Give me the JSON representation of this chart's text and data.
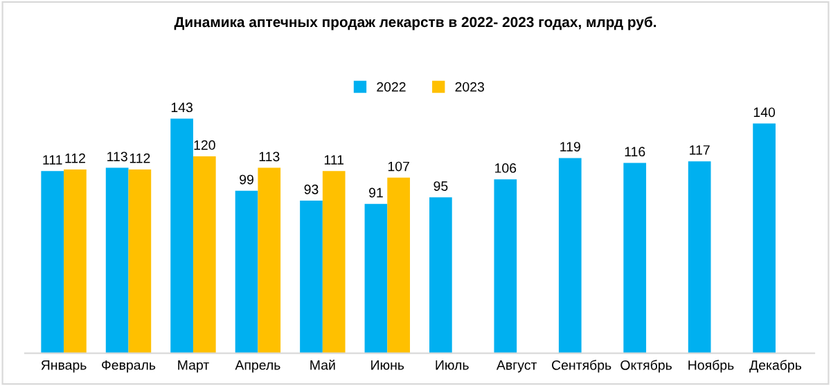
{
  "chart_data": {
    "type": "bar",
    "title": "Динамика аптечных продаж лекарств в 2022- 2023 годах, млрд руб.",
    "categories": [
      "Январь",
      "Февраль",
      "Март",
      "Апрель",
      "Май",
      "Июнь",
      "Июль",
      "Август",
      "Сентябрь",
      "Октябрь",
      "Ноябрь",
      "Декабрь"
    ],
    "series": [
      {
        "name": "2022",
        "color": "#00b0f0",
        "values": [
          111,
          113,
          143,
          99,
          93,
          91,
          95,
          106,
          119,
          116,
          117,
          140
        ]
      },
      {
        "name": "2023",
        "color": "#ffc000",
        "values": [
          112,
          112,
          120,
          113,
          111,
          107,
          null,
          null,
          null,
          null,
          null,
          null
        ]
      }
    ],
    "data_labels": true,
    "legend": "top",
    "grid": false
  }
}
